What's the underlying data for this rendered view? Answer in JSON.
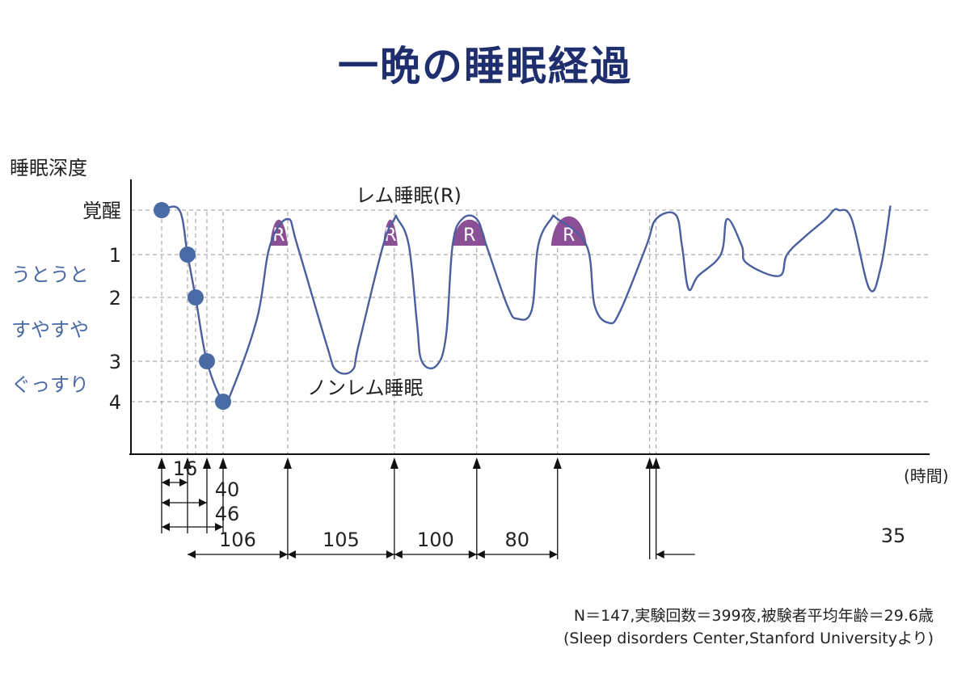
{
  "title": "一晩の睡眠経過",
  "colors": {
    "line": "#4a5f9e",
    "dot": "#4a6aa6",
    "rem_fill": "#8a4f95",
    "grid": "#999999",
    "title": "#1f2f6e",
    "blue_label": "#4a6aa6"
  },
  "chart_data": {
    "type": "line",
    "ylabel": "睡眠深度",
    "xlabel": "(時間)",
    "y_ticks": [
      {
        "label": "覚醒",
        "level": 0
      },
      {
        "label": "1",
        "level": 1
      },
      {
        "label": "2",
        "level": 2
      },
      {
        "label": "3",
        "level": 3.5
      },
      {
        "label": "4",
        "level": 4.4
      }
    ],
    "depth_words": [
      "うとうと",
      "すやすや",
      "ぐっすり"
    ],
    "annotations": {
      "rem": "レム睡眠(R)",
      "nonrem": "ノンレム睡眠",
      "rem_marker": "R"
    },
    "series": [
      {
        "x": [
          0,
          11,
          16,
          21,
          28,
          38,
          43,
          59,
          67,
          78,
          84,
          102,
          108,
          118,
          122,
          137,
          144,
          146,
          153,
          158,
          161,
          170,
          176,
          180,
          186,
          195,
          201,
          214,
          220,
          229,
          233,
          241,
          245,
          263,
          268,
          277,
          284,
          300,
          306,
          318,
          322,
          326,
          332,
          346,
          350,
          359,
          362,
          382,
          387,
          398,
          411,
          416,
          419,
          427,
          438,
          445,
          451
        ],
        "y": [
          0,
          0,
          1,
          2,
          3.5,
          4.4,
          4.2,
          2.5,
          0.8,
          0.2,
          0.8,
          3.1,
          3.7,
          3.7,
          3.1,
          0.8,
          0.2,
          0.2,
          0.8,
          2.6,
          3.5,
          3.6,
          2.9,
          0.8,
          0.2,
          0.2,
          0.8,
          2.2,
          2.5,
          2.3,
          0.8,
          0.2,
          0.2,
          0.8,
          2.2,
          2.6,
          2.3,
          0.8,
          0.2,
          0.1,
          0.8,
          1.8,
          1.5,
          1.0,
          0.2,
          0.8,
          1.2,
          1.5,
          1.0,
          0.6,
          0.2,
          0,
          0,
          0.2,
          1.8,
          1.3,
          -0.1
        ]
      }
    ],
    "stage_points": [
      {
        "x": 0,
        "level": 0
      },
      {
        "x": 16,
        "level": 1
      },
      {
        "x": 21,
        "level": 2
      },
      {
        "x": 28,
        "level": 3.5
      },
      {
        "x": 38,
        "level": 4.4
      }
    ],
    "rem_peaks": [
      {
        "x_start": 67,
        "x_end": 78,
        "peak_level": 0.2
      },
      {
        "x_start": 137,
        "x_end": 146,
        "peak_level": 0.2
      },
      {
        "x_start": 180,
        "x_end": 201,
        "peak_level": 0.2
      },
      {
        "x_start": 241,
        "x_end": 263,
        "peak_level": 0.1
      }
    ],
    "cycle_markers_x": [
      0,
      16,
      21,
      28,
      38,
      78,
      144,
      195,
      245,
      302,
      306
    ],
    "cycle_durations": [
      {
        "label": "16",
        "from": 0,
        "to": 16
      },
      {
        "label": "40",
        "from": 0,
        "to": 28
      },
      {
        "label": "46",
        "from": 0,
        "to": 38
      },
      {
        "label": "106",
        "from": 16,
        "to": 78
      },
      {
        "label": "105",
        "from": 78,
        "to": 144
      },
      {
        "label": "100",
        "from": 144,
        "to": 195
      },
      {
        "label": "80",
        "from": 195,
        "to": 245
      },
      {
        "label": "35",
        "from": 306,
        "to": 330
      }
    ]
  },
  "footnote": {
    "line1": "N＝147,実験回数＝399夜,被験者平均年齢＝29.6歳",
    "line2": "(Sleep disorders Center,Stanford Universityより)"
  }
}
